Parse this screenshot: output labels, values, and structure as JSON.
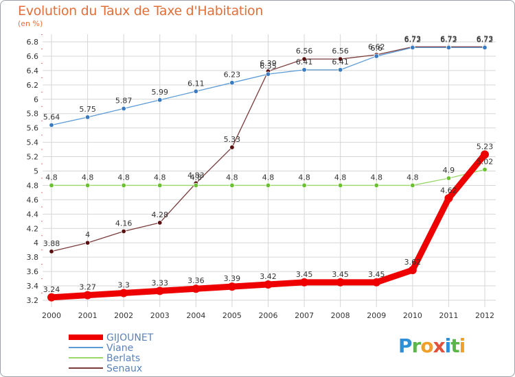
{
  "header": {
    "title": "Evolution du Taux de Taxe d'Habitation",
    "subtitle": "(en %)"
  },
  "brand": {
    "letters": [
      "P",
      "r",
      "o",
      "x",
      "i",
      "t",
      "i"
    ],
    "colors": [
      "#2f8fd6",
      "#5ab54a",
      "#f0a028",
      "#e0503a",
      "#2f8fd6",
      "#5ab54a",
      "#f0a028"
    ]
  },
  "chart_data": {
    "type": "line",
    "x": [
      "2000",
      "2001",
      "2002",
      "2003",
      "2004",
      "2005",
      "2006",
      "2007",
      "2008",
      "2009",
      "2010",
      "2011",
      "2012"
    ],
    "ylim": [
      3.2,
      6.8
    ],
    "yticks": [
      "3.2",
      "3.4",
      "3.6",
      "3.8",
      "4",
      "4.2",
      "4.4",
      "4.6",
      "4.8",
      "5",
      "5.2",
      "5.4",
      "5.6",
      "5.8",
      "6",
      "6.2",
      "6.4",
      "6.6",
      "6.8"
    ],
    "grid": true,
    "series": [
      {
        "name": "Senaux",
        "color": "#7a3a3a",
        "marker": "#5a1010",
        "values": [
          3.88,
          4.0,
          4.16,
          4.28,
          4.83,
          5.33,
          6.39,
          6.56,
          6.56,
          6.62,
          6.73,
          6.73,
          6.73
        ],
        "labels": [
          "3.88",
          "4",
          "4.16",
          "4.28",
          "4.83",
          "5.33",
          "6.39",
          "6.56",
          "6.56",
          "6.62",
          "6.73",
          "6.73",
          "6.73"
        ]
      },
      {
        "name": "Viane",
        "color": "#5a9ad6",
        "marker": "#3a7ac0",
        "values": [
          5.64,
          5.75,
          5.87,
          5.99,
          6.11,
          6.23,
          6.35,
          6.41,
          6.41,
          6.6,
          6.72,
          6.72,
          6.72
        ],
        "labels": [
          "5.64",
          "5.75",
          "5.87",
          "5.99",
          "6.11",
          "6.23",
          "6.35",
          "6.41",
          "6.41",
          "6.6",
          "6.72",
          "6.72",
          "6.72"
        ]
      },
      {
        "name": "Berlats",
        "color": "#9ad86a",
        "marker": "#6ac030",
        "values": [
          4.8,
          4.8,
          4.8,
          4.8,
          4.8,
          4.8,
          4.8,
          4.8,
          4.8,
          4.8,
          4.8,
          4.9,
          5.02
        ],
        "labels": [
          "4.8",
          "4.8",
          "4.8",
          "4.8",
          "4.8",
          "4.8",
          "4.8",
          "4.8",
          "4.8",
          "4.8",
          "4.8",
          "4.9",
          "5.02"
        ]
      },
      {
        "name": "GIJOUNET",
        "color": "#ee0000",
        "marker": "#ee0000",
        "values": [
          3.24,
          3.27,
          3.3,
          3.33,
          3.36,
          3.39,
          3.42,
          3.45,
          3.45,
          3.45,
          3.62,
          4.62,
          5.23
        ],
        "labels": [
          "3.24",
          "3.27",
          "3.3",
          "3.33",
          "3.36",
          "3.39",
          "3.42",
          "3.45",
          "3.45",
          "3.45",
          "3.62",
          "4.62",
          "5.23"
        ]
      }
    ],
    "legend": [
      "GIJOUNET",
      "Viane",
      "Berlats",
      "Senaux"
    ]
  }
}
